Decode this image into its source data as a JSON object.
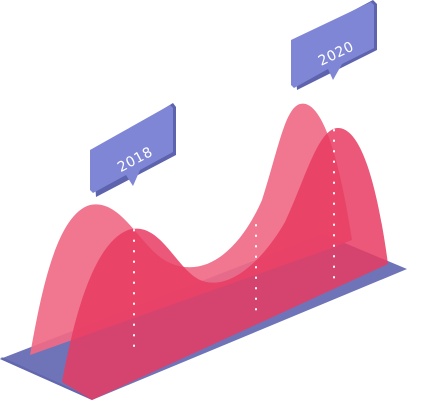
{
  "callouts": {
    "left": {
      "label": "2018"
    },
    "right": {
      "label": "2020"
    }
  },
  "colors": {
    "floor": "#6f74b8",
    "floor_dark": "#5a5fa6",
    "back_wave": "#f06a86",
    "front_wave": "#e83b61",
    "callout": "#7f86d6",
    "callout_dark": "#5e63ad",
    "text": "#ffffff",
    "dots": "#ffffff"
  }
}
